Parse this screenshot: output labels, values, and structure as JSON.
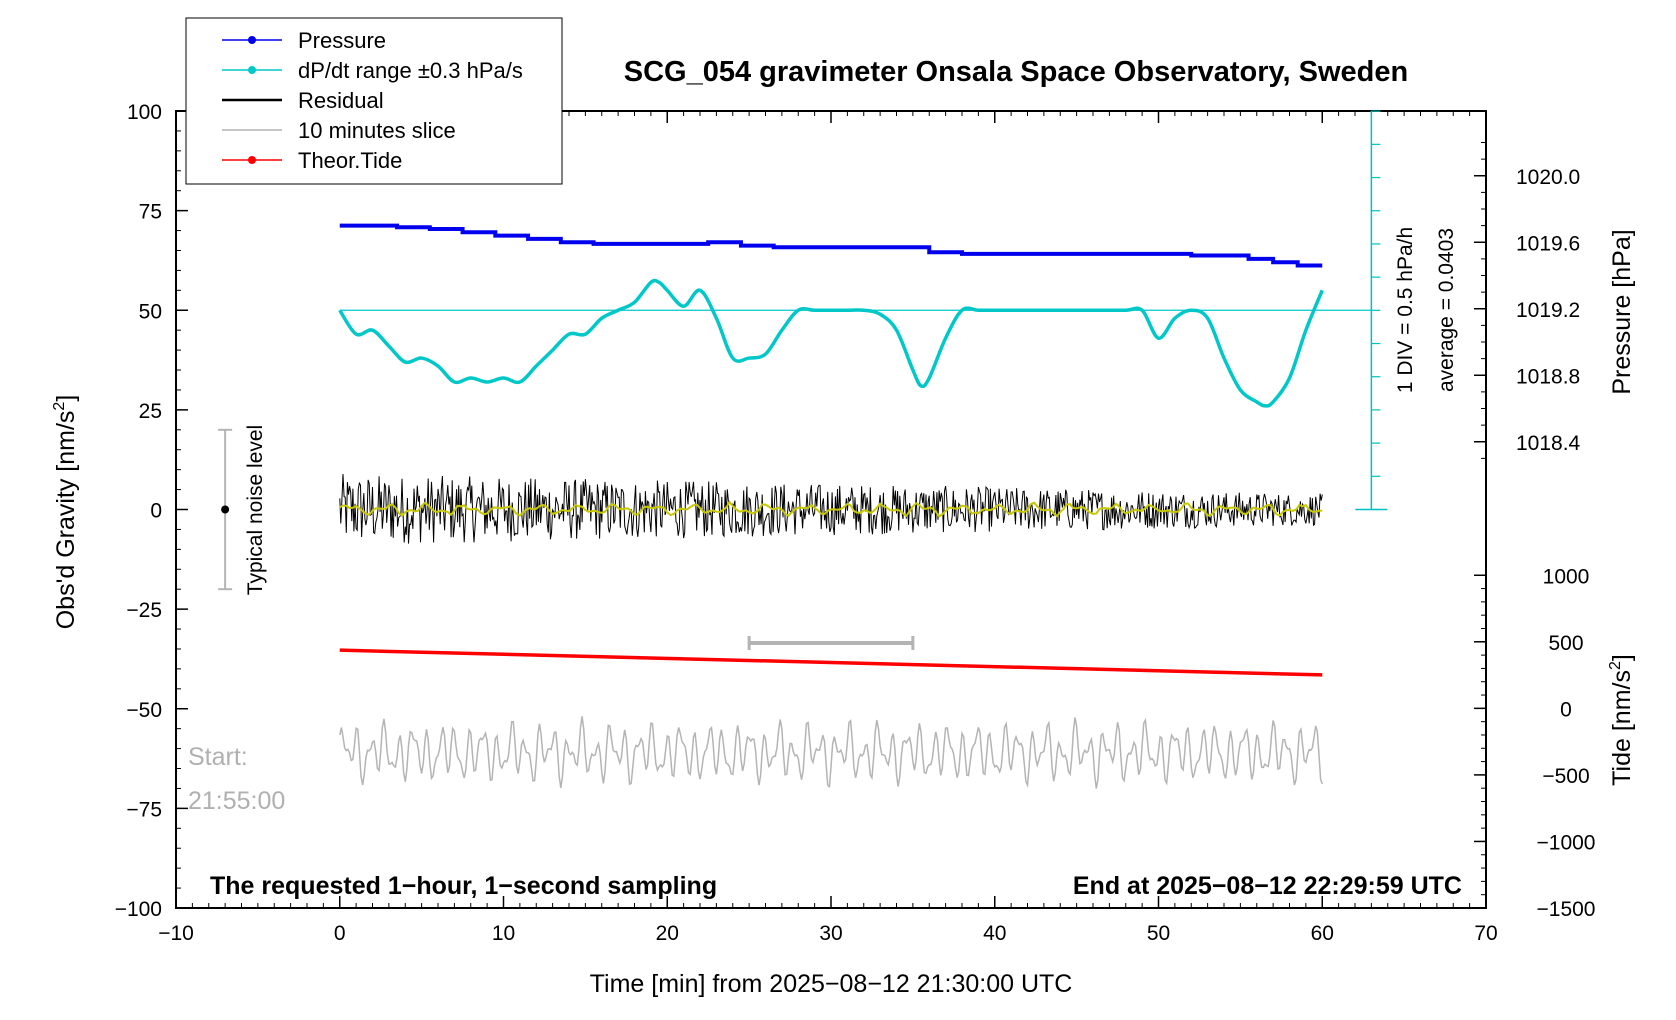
{
  "chart_data": {
    "type": "line",
    "title": "SCG_054 gravimeter Onsala Space Observatory, Sweden",
    "xlabel": "Time [min] from 2025−08−12 21:30:00 UTC",
    "ylabel_left": "Obs'd Gravity [nm/s",
    "ylabel_left_sup": "2",
    "ylabel_left_end": "]",
    "ylabel_pressure": "Pressure [hPa]",
    "ylabel_tide": "Tide [nm/s",
    "ylabel_tide_sup": "2",
    "ylabel_tide_end": "]",
    "xlim": [
      -10,
      70
    ],
    "ylim_left": [
      -100,
      100
    ],
    "x_ticks": [
      "−10",
      "0",
      "10",
      "20",
      "30",
      "40",
      "50",
      "60",
      "70"
    ],
    "x_tick_values": [
      -10,
      0,
      10,
      20,
      30,
      40,
      50,
      60,
      70
    ],
    "y_ticks_left": [
      "100",
      "75",
      "50",
      "25",
      "0",
      "−25",
      "−50",
      "−75",
      "−100"
    ],
    "y_tick_values_left": [
      100,
      75,
      50,
      25,
      0,
      -25,
      -50,
      -75,
      -100
    ],
    "pressure_ticks": [
      "1020.0",
      "1019.6",
      "1019.2",
      "1018.8",
      "1018.4"
    ],
    "pressure_tick_values": [
      1020.0,
      1019.6,
      1019.2,
      1018.8,
      1018.4
    ],
    "pressure_gravity_mapping": {
      "hpa_a": 1020.0,
      "grav_a": 83.75,
      "hpa_b": 1018.4,
      "grav_b": 17.0
    },
    "tide_ticks": [
      "1000",
      "500",
      "0",
      "−500",
      "−1000",
      "−1500"
    ],
    "tide_tick_values": [
      1000,
      500,
      0,
      -500,
      -1000,
      -1500
    ],
    "tide_gravity_mapping": {
      "tide_a": 1000,
      "grav_a": -16.5,
      "tide_b": -1500,
      "grav_b": -100
    },
    "legend": [
      {
        "label": "Pressure",
        "color": "#0000ee",
        "marker": true
      },
      {
        "label": "dP/dt range ±0.3 hPa/s",
        "color": "#00c8c8",
        "marker": true
      },
      {
        "label": "Residual",
        "color": "#000000",
        "marker": false
      },
      {
        "label": "10 minutes slice",
        "color": "#b4b4b4",
        "marker": false
      },
      {
        "label": "Theor.Tide",
        "color": "#ff0000",
        "marker": true
      }
    ],
    "series": [
      {
        "name": "Pressure",
        "unit": "hPa",
        "color": "#0000ee",
        "x": [
          0,
          1.5,
          3.5,
          5.5,
          7.5,
          9.5,
          11.5,
          13.5,
          15.5,
          17.5,
          19.5,
          21.5,
          22.5,
          24.5,
          26.5,
          28.5,
          30.5,
          32.5,
          34.5,
          36,
          38,
          40,
          42,
          44,
          46,
          48,
          50,
          52,
          54,
          55.5,
          57,
          58.5,
          60
        ],
        "values": [
          1019.7,
          1019.7,
          1019.69,
          1019.68,
          1019.66,
          1019.64,
          1019.62,
          1019.6,
          1019.59,
          1019.59,
          1019.59,
          1019.59,
          1019.6,
          1019.58,
          1019.57,
          1019.57,
          1019.57,
          1019.57,
          1019.57,
          1019.54,
          1019.53,
          1019.53,
          1019.53,
          1019.53,
          1019.53,
          1019.53,
          1019.53,
          1019.52,
          1019.52,
          1019.5,
          1019.48,
          1019.46,
          1019.46
        ]
      },
      {
        "name": "dP/dt range ±0.3 hPa/s",
        "unit": "nm/s2 (plotted)",
        "color": "#00c8c8",
        "x": [
          0,
          1,
          2,
          3,
          4,
          5,
          6,
          7,
          8,
          9,
          10,
          11,
          12,
          13,
          14,
          15,
          16,
          17,
          18,
          19,
          19.5,
          20,
          21,
          22,
          23,
          24,
          25,
          26,
          27,
          28,
          29,
          30,
          31,
          32,
          33,
          34,
          35,
          35.5,
          36,
          37,
          38,
          39,
          40,
          42,
          44,
          46,
          48,
          49,
          50,
          51,
          52,
          53,
          54,
          55,
          56,
          56.5,
          57,
          58,
          59,
          60
        ],
        "values": [
          50,
          44,
          45,
          41,
          37,
          38,
          36,
          32,
          33,
          32,
          33,
          32,
          36,
          40,
          44,
          44,
          48,
          50,
          52,
          57,
          57,
          55,
          51,
          55,
          48,
          38,
          38,
          39,
          45,
          50,
          50,
          50,
          50,
          50,
          49,
          45,
          35,
          31,
          33,
          43,
          50,
          50,
          50,
          50,
          50,
          50,
          50,
          50,
          43,
          48,
          50,
          48,
          38,
          30,
          27,
          26,
          27,
          33,
          45,
          55
        ]
      },
      {
        "name": "Residual",
        "unit": "nm/s2",
        "color": "#000000",
        "x_range": [
          0,
          60
        ],
        "amplitude_early": 9,
        "amplitude_late": 4
      },
      {
        "name": "Residual smoothed",
        "unit": "nm/s2",
        "color": "#c8c800",
        "x_range": [
          0,
          60
        ],
        "amplitude": 2
      },
      {
        "name": "Theor.Tide",
        "unit": "nm/s2",
        "color": "#ff0000",
        "x": [
          0,
          60
        ],
        "values": [
          -35.3,
          -41.5
        ]
      },
      {
        "name": "10 minutes slice",
        "unit": "nm/s2",
        "color": "#b4b4b4",
        "x_range": [
          0,
          60
        ],
        "center": -61,
        "amplitude": 8
      }
    ],
    "slice_bar": {
      "x_start": 25,
      "x_end": 35,
      "y": -33.5
    },
    "noise_bar": {
      "x": -7,
      "y_center": 0,
      "y_low": -20,
      "y_high": 20,
      "label": "Typical noise level"
    },
    "scale_bar": {
      "x": 63,
      "y_top": 100,
      "y_bottom": 0,
      "label_div": "1 DIV = 0.5 hPa/h",
      "label_avg": "average = 0.0403",
      "reference_y": 50
    },
    "annotations": {
      "start_label": "Start:",
      "start_time": "21:55:00",
      "note_left": "The requested 1−hour, 1−second sampling",
      "note_right": "End at 2025−08−12 22:29:59 UTC"
    }
  }
}
